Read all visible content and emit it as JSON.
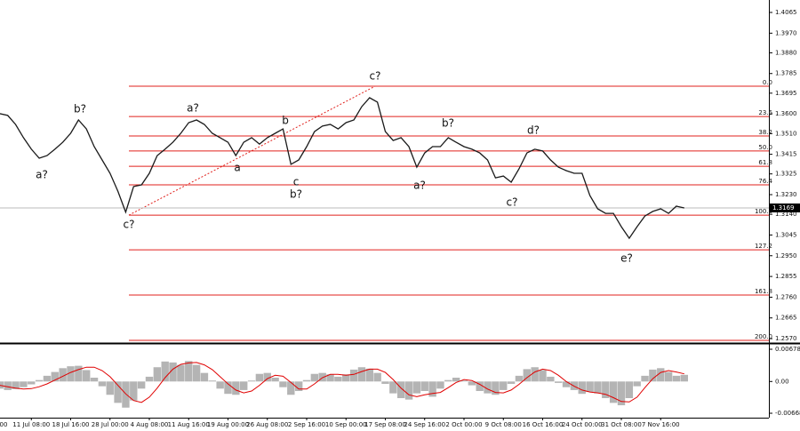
{
  "chart_data": [
    {
      "type": "line",
      "color": "#1a1a1a",
      "values": [
        1.3601,
        1.3601,
        1.3593,
        1.3552,
        1.3491,
        1.3438,
        1.3397,
        1.3409,
        1.3438,
        1.347,
        1.3511,
        1.3572,
        1.3531,
        1.345,
        1.3389,
        1.3328,
        1.3246,
        1.315,
        1.3267,
        1.3275,
        1.3328,
        1.3409,
        1.3438,
        1.347,
        1.3511,
        1.356,
        1.3572,
        1.3552,
        1.3511,
        1.3491,
        1.347,
        1.3409,
        1.347,
        1.3491,
        1.3462,
        1.3491,
        1.3511,
        1.3531,
        1.3369,
        1.3389,
        1.345,
        1.3519,
        1.3544,
        1.3552,
        1.3531,
        1.356,
        1.3572,
        1.3633,
        1.3674,
        1.3654,
        1.3519,
        1.3478,
        1.3491,
        1.345,
        1.3356,
        1.3421,
        1.345,
        1.345,
        1.3491,
        1.347,
        1.345,
        1.3438,
        1.3421,
        1.3389,
        1.3307,
        1.3315,
        1.3287,
        1.3348,
        1.3421,
        1.3438,
        1.343,
        1.3389,
        1.3356,
        1.334,
        1.3328,
        1.3328,
        1.3226,
        1.3165,
        1.3144,
        1.3144,
        1.3083,
        1.303,
        1.3083,
        1.3132,
        1.3153,
        1.3165,
        1.3144,
        1.3177,
        1.3169
      ],
      "ylim": [
        1.2554,
        1.4122
      ],
      "yticks": [
        1.4065,
        {
          "value": 1.397,
          "label": "1.3970"
        },
        {
          "value": 1.388,
          "label": "1.3880"
        },
        1.3785,
        1.3695,
        {
          "value": 1.36,
          "label": "1.3600"
        },
        {
          "value": 1.351,
          "label": "1.3510"
        },
        1.3415,
        1.3325,
        {
          "value": 1.323,
          "label": "1.3230"
        },
        {
          "value": 1.314,
          "label": "1.3140"
        },
        1.3045,
        {
          "value": 1.295,
          "label": "1.2950"
        },
        1.2855,
        {
          "value": 1.276,
          "label": "1.2760"
        },
        1.2665,
        {
          "value": 1.257,
          "label": "1.2570"
        }
      ],
      "current_price": 1.3169,
      "fib_color": "#e0201c",
      "fib_levels": [
        {
          "label": "0.0",
          "value": 1.3727
        },
        {
          "label": "23.6",
          "value": 1.3588
        },
        {
          "label": "38.2",
          "value": 1.3499
        },
        {
          "label": "50.0",
          "value": 1.343
        },
        {
          "label": "61.8",
          "value": 1.336
        },
        {
          "label": "76.4",
          "value": 1.3275
        },
        {
          "label": "100.0",
          "value": 1.3136
        },
        {
          "label": "127.2",
          "value": 1.2977
        },
        {
          "label": "161.8",
          "value": 1.277
        },
        {
          "label": "200.0",
          "value": 1.2562
        }
      ],
      "annotations": [
        {
          "text": "a?",
          "color": "#e01010"
        },
        {
          "text": "b?",
          "color": "#e01010"
        },
        {
          "text": "c?",
          "color": "#e01010"
        },
        {
          "text": "a?",
          "color": "#e01010"
        },
        {
          "text": "a",
          "color": "#2a2adf"
        },
        {
          "text": "b",
          "color": "#2a2adf"
        },
        {
          "text": "c",
          "color": "#2a2adf"
        },
        {
          "text": "b?",
          "color": "#e01010"
        },
        {
          "text": "c?",
          "color": "#e01010"
        },
        {
          "text": "a?",
          "color": "#e01010"
        },
        {
          "text": "b?",
          "color": "#e01010"
        },
        {
          "text": "c?",
          "color": "#e01010"
        },
        {
          "text": "d?",
          "color": "#e01010"
        },
        {
          "text": "e?",
          "color": "#e01010"
        }
      ]
    },
    {
      "type": "macd",
      "color": "#b4b4b4",
      "categories": [
        "00",
        null,
        null,
        null,
        null,
        "11 Jul 08:00",
        null,
        null,
        null,
        null,
        "18 Jul 16:00",
        null,
        null,
        null,
        null,
        "28 Jul 00:00",
        null,
        null,
        null,
        null,
        "4 Aug 08:00",
        null,
        null,
        null,
        null,
        "11 Aug 16:00",
        null,
        null,
        null,
        null,
        "19 Aug 00:00",
        null,
        null,
        null,
        null,
        "26 Aug 08:00",
        null,
        null,
        null,
        null,
        "2 Sep 16:00",
        null,
        null,
        null,
        null,
        "10 Sep 00:00",
        null,
        null,
        null,
        null,
        "17 Sep 08:00",
        null,
        null,
        null,
        null,
        "24 Sep 16:00",
        null,
        null,
        null,
        null,
        "2 Oct 00:00",
        null,
        null,
        null,
        null,
        "9 Oct 08:00",
        null,
        null,
        null,
        null,
        "16 Oct 16:00",
        null,
        null,
        null,
        null,
        "24 Oct 00:00",
        null,
        null,
        null,
        null,
        "31 Oct 08:00",
        null,
        null,
        null,
        null,
        "7 Nov 16:00",
        null,
        null,
        null
      ],
      "values": [
        -0.001,
        -0.0015,
        -0.0018,
        -0.0016,
        -0.0012,
        -0.0006,
        0.0003,
        0.0012,
        0.002,
        0.0028,
        0.0032,
        0.0033,
        0.0024,
        0.0008,
        -0.001,
        -0.0028,
        -0.0045,
        -0.0055,
        -0.004,
        -0.0015,
        0.001,
        0.003,
        0.0042,
        0.004,
        0.0035,
        0.0043,
        0.0035,
        0.0018,
        0.0002,
        -0.0015,
        -0.0026,
        -0.0028,
        -0.0018,
        0.0002,
        0.0016,
        0.0018,
        0.0008,
        -0.0012,
        -0.0028,
        -0.002,
        0.0003,
        0.0016,
        0.0018,
        0.0015,
        0.001,
        0.0015,
        0.0025,
        0.003,
        0.0027,
        0.0018,
        -0.0005,
        -0.0025,
        -0.0035,
        -0.0038,
        -0.0025,
        -0.002,
        -0.0032,
        -0.0015,
        0.0003,
        0.0008,
        0.0002,
        -0.0008,
        -0.002,
        -0.0025,
        -0.0028,
        -0.0018,
        -0.0005,
        0.0012,
        0.0026,
        0.003,
        0.0024,
        0.001,
        -0.0003,
        -0.0012,
        -0.0018,
        -0.0026,
        -0.0022,
        -0.0025,
        -0.0035,
        -0.0045,
        -0.005,
        -0.0035,
        -0.001,
        0.0012,
        0.0025,
        0.0028,
        0.002,
        0.0012,
        0.0014
      ],
      "signal": {
        "color": "#e00000",
        "values": [
          -0.0006,
          -0.0008,
          -0.0011,
          -0.0014,
          -0.0016,
          -0.0015,
          -0.0011,
          -0.0005,
          0.0003,
          0.0011,
          0.0019,
          0.0025,
          0.003,
          0.003,
          0.0023,
          0.001,
          -0.0008,
          -0.0026,
          -0.004,
          -0.0044,
          -0.0033,
          -0.0014,
          0.0008,
          0.0026,
          0.0036,
          0.0039,
          0.004,
          0.0035,
          0.0025,
          0.001,
          -0.0005,
          -0.0018,
          -0.0024,
          -0.002,
          -0.0008,
          0.0006,
          0.0013,
          0.0011,
          -0.0002,
          -0.0016,
          -0.0016,
          -0.0005,
          0.0008,
          0.0015,
          0.0015,
          0.0013,
          0.0015,
          0.0021,
          0.0026,
          0.0026,
          0.0019,
          0.0004,
          -0.0014,
          -0.0028,
          -0.0032,
          -0.0028,
          -0.0025,
          -0.0023,
          -0.0013,
          -0.0002,
          0.0004,
          0.0002,
          -0.0006,
          -0.0016,
          -0.0023,
          -0.0024,
          -0.0018,
          -0.0006,
          0.0008,
          0.002,
          0.0026,
          0.0023,
          0.0013,
          0,
          -0.001,
          -0.0018,
          -0.0022,
          -0.0024,
          -0.0027,
          -0.0034,
          -0.0042,
          -0.0043,
          -0.0033,
          -0.0013,
          0.0006,
          0.0019,
          0.0023,
          0.002,
          0.0016
        ]
      },
      "ylim": [
        -0.00761,
        0.00753
      ],
      "yticks": [
        0.00678,
        {
          "value": 0,
          "label": "0.00"
        },
        -0.00668
      ]
    }
  ]
}
